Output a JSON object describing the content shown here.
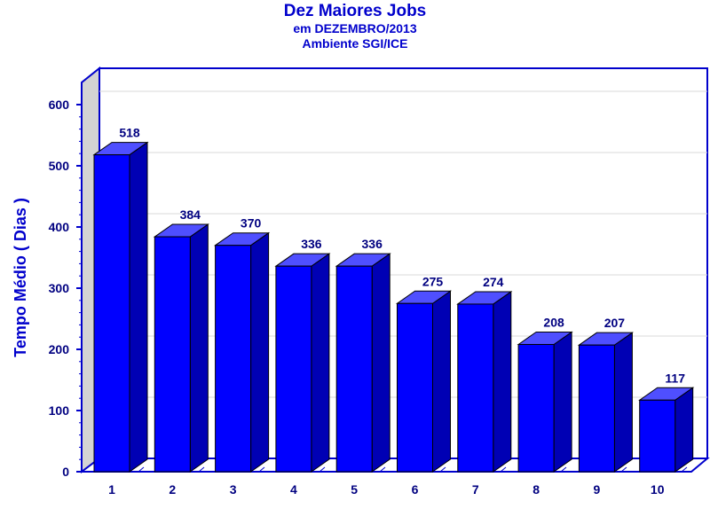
{
  "chart_data": {
    "type": "bar",
    "title": "Dez Maiores Jobs",
    "subtitle": [
      "em DEZEMBRO/2013",
      "Ambiente SGI/ICE"
    ],
    "xlabel": "",
    "ylabel": "Tempo Médio ( Dias )",
    "categories": [
      "1",
      "2",
      "3",
      "4",
      "5",
      "6",
      "7",
      "8",
      "9",
      "10"
    ],
    "values": [
      518,
      384,
      370,
      336,
      336,
      275,
      274,
      208,
      207,
      117
    ],
    "ylim": [
      0,
      600
    ],
    "yticks": [
      0,
      100,
      200,
      300,
      400,
      500,
      600
    ],
    "grid": true,
    "style": "3d",
    "colors": {
      "bar_front": "#0000ff",
      "bar_top": "#4f4fff",
      "bar_side": "#0000b4",
      "text": "#0000cc",
      "left_wall": "#d3d3d3"
    }
  }
}
